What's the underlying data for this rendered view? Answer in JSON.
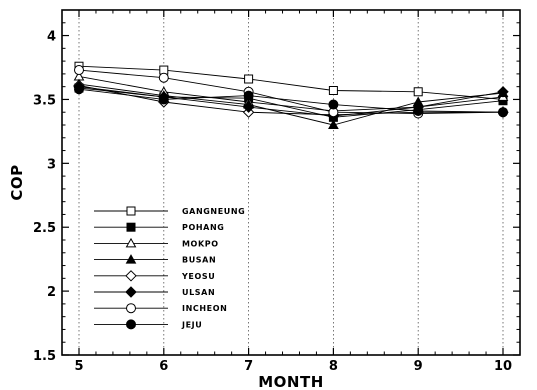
{
  "chart_data": {
    "type": "line",
    "xlabel": "MONTH",
    "ylabel": "COP",
    "xlim": [
      5,
      10
    ],
    "ylim": [
      1.5,
      4.2
    ],
    "x_ticks": [
      5,
      6,
      7,
      8,
      9,
      10
    ],
    "y_ticks": [
      1.5,
      2,
      2.5,
      3,
      3.5,
      4
    ],
    "x_tick_labels": [
      "5",
      "6",
      "7",
      "8",
      "9",
      "10"
    ],
    "y_tick_labels": [
      "1.5",
      "2",
      "2.5",
      "3",
      "3.5",
      "4"
    ],
    "grid": "vertical-dotted",
    "legend_position": "lower-left",
    "x": [
      5,
      6,
      7,
      8,
      9,
      10
    ],
    "series": [
      {
        "name": "GANGNEUNG",
        "marker": "square-open",
        "values": [
          3.76,
          3.73,
          3.66,
          3.57,
          3.56,
          3.5
        ]
      },
      {
        "name": "POHANG",
        "marker": "square-filled",
        "values": [
          3.59,
          3.52,
          3.51,
          3.36,
          3.42,
          3.49
        ]
      },
      {
        "name": "MOKPO",
        "marker": "triangle-open",
        "values": [
          3.68,
          3.56,
          3.48,
          3.41,
          3.44,
          3.52
        ]
      },
      {
        "name": "BUSAN",
        "marker": "triangle-filled",
        "values": [
          3.62,
          3.53,
          3.46,
          3.3,
          3.48,
          3.55
        ]
      },
      {
        "name": "YEOSU",
        "marker": "diamond-open",
        "values": [
          3.61,
          3.48,
          3.4,
          3.38,
          3.4,
          3.4
        ]
      },
      {
        "name": "ULSAN",
        "marker": "diamond-filled",
        "values": [
          3.6,
          3.52,
          3.44,
          3.37,
          3.44,
          3.56
        ]
      },
      {
        "name": "INCHEON",
        "marker": "circle-open",
        "values": [
          3.73,
          3.67,
          3.56,
          3.4,
          3.39,
          3.4
        ]
      },
      {
        "name": "JEJU",
        "marker": "circle-filled",
        "values": [
          3.58,
          3.5,
          3.53,
          3.46,
          3.41,
          3.4
        ]
      }
    ]
  }
}
